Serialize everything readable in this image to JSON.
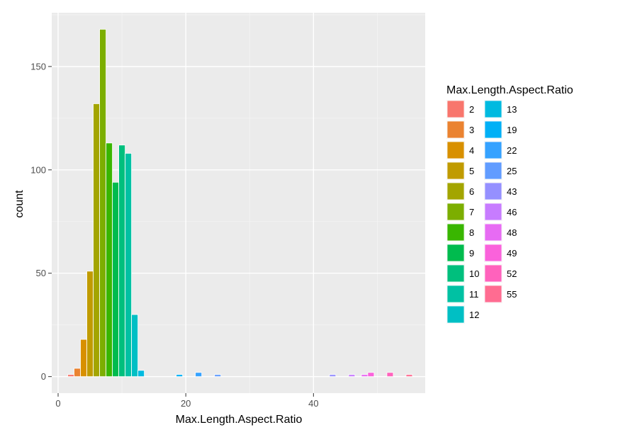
{
  "chart_data": {
    "type": "bar",
    "xlabel": "Max.Length.Aspect.Ratio",
    "ylabel": "count",
    "xlim": [
      -1,
      57.5
    ],
    "ylim": [
      -8,
      176
    ],
    "x_ticks": [
      0,
      20,
      40
    ],
    "y_ticks": [
      0,
      50,
      100,
      150
    ],
    "legend_title": "Max.Length.Aspect.Ratio",
    "legend_position": "right",
    "grid": true,
    "bars": [
      {
        "x": 2,
        "count": 1,
        "color": "#F8766D"
      },
      {
        "x": 3,
        "count": 4,
        "color": "#EA8331"
      },
      {
        "x": 4,
        "count": 18,
        "color": "#D89000"
      },
      {
        "x": 5,
        "count": 51,
        "color": "#C09B00"
      },
      {
        "x": 6,
        "count": 132,
        "color": "#A3A500"
      },
      {
        "x": 7,
        "count": 168,
        "color": "#7CAE00"
      },
      {
        "x": 8,
        "count": 113,
        "color": "#39B600"
      },
      {
        "x": 9,
        "count": 94,
        "color": "#00BB4E"
      },
      {
        "x": 10,
        "count": 112,
        "color": "#00BF7D"
      },
      {
        "x": 11,
        "count": 108,
        "color": "#00C1A3"
      },
      {
        "x": 12,
        "count": 30,
        "color": "#00BFC4"
      },
      {
        "x": 13,
        "count": 3,
        "color": "#00BAE0"
      },
      {
        "x": 19,
        "count": 1,
        "color": "#00B0F6"
      },
      {
        "x": 22,
        "count": 2,
        "color": "#35A2FF"
      },
      {
        "x": 25,
        "count": 1,
        "color": "#619CFF"
      },
      {
        "x": 43,
        "count": 1,
        "color": "#9590FF"
      },
      {
        "x": 46,
        "count": 1,
        "color": "#C77CFF"
      },
      {
        "x": 48,
        "count": 1,
        "color": "#E76BF3"
      },
      {
        "x": 49,
        "count": 2,
        "color": "#FA62DB"
      },
      {
        "x": 52,
        "count": 2,
        "color": "#FF62BC"
      },
      {
        "x": 55,
        "count": 1,
        "color": "#FF6C91"
      }
    ],
    "legend": [
      {
        "label": "2",
        "color": "#F8766D"
      },
      {
        "label": "3",
        "color": "#EA8331"
      },
      {
        "label": "4",
        "color": "#D89000"
      },
      {
        "label": "5",
        "color": "#C09B00"
      },
      {
        "label": "6",
        "color": "#A3A500"
      },
      {
        "label": "7",
        "color": "#7CAE00"
      },
      {
        "label": "8",
        "color": "#39B600"
      },
      {
        "label": "9",
        "color": "#00BB4E"
      },
      {
        "label": "10",
        "color": "#00BF7D"
      },
      {
        "label": "11",
        "color": "#00C1A3"
      },
      {
        "label": "12",
        "color": "#00BFC4"
      },
      {
        "label": "13",
        "color": "#00BAE0"
      },
      {
        "label": "19",
        "color": "#00B0F6"
      },
      {
        "label": "22",
        "color": "#35A2FF"
      },
      {
        "label": "25",
        "color": "#619CFF"
      },
      {
        "label": "43",
        "color": "#9590FF"
      },
      {
        "label": "46",
        "color": "#C77CFF"
      },
      {
        "label": "48",
        "color": "#E76BF3"
      },
      {
        "label": "49",
        "color": "#FA62DB"
      },
      {
        "label": "52",
        "color": "#FF62BC"
      },
      {
        "label": "55",
        "color": "#FF6C91"
      }
    ]
  }
}
